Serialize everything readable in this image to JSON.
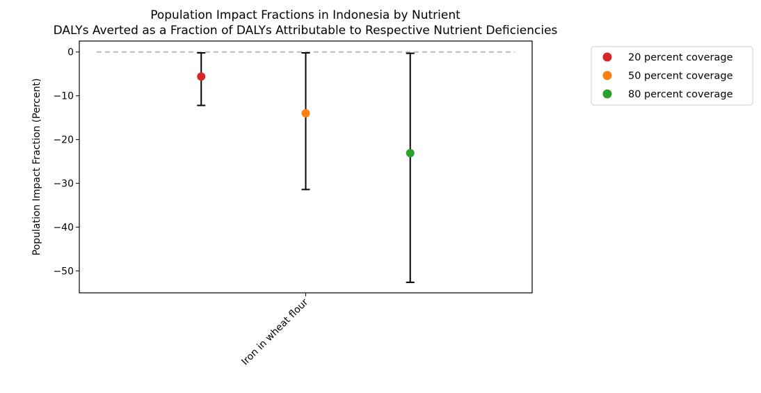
{
  "chart_data": {
    "type": "scatter",
    "title": "Population Impact Fractions in Indonesia by Nutrient",
    "subtitle": "DALYs Averted as a Fraction of DALYs Attributable to Respective Nutrient Deficiencies",
    "xlabel": "",
    "ylabel": "Population Impact Fraction (Percent)",
    "categories": [
      "Iron in wheat flour"
    ],
    "ylim": [
      -55,
      2.5
    ],
    "yticks": [
      0,
      -10,
      -20,
      -30,
      -40,
      -50
    ],
    "ytick_labels": [
      "0",
      "−10",
      "−20",
      "−30",
      "−40",
      "−50"
    ],
    "reference_line": {
      "y": 0,
      "style": "dashed",
      "color": "#bbbbbb"
    },
    "grid": false,
    "legend_position": "outside-right",
    "series": [
      {
        "name": "20 percent coverage",
        "color": "#d62728",
        "offset": -0.3,
        "value": -5.6,
        "lower": -12.2,
        "upper": -0.2
      },
      {
        "name": "50 percent coverage",
        "color": "#ff7f0e",
        "offset": 0.0,
        "value": -14.0,
        "lower": -31.4,
        "upper": -0.2
      },
      {
        "name": "80 percent coverage",
        "color": "#2ca02c",
        "offset": 0.3,
        "value": -23.1,
        "lower": -52.6,
        "upper": -0.3
      }
    ]
  }
}
